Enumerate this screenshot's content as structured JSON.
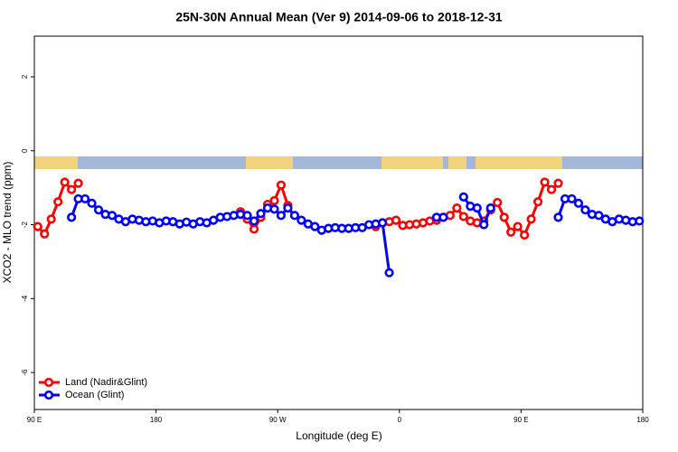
{
  "chart_data": {
    "type": "line",
    "title": "25N-30N Annual Mean (Ver 9)   2014-09-06 to 2018-12-31",
    "x_label": "Longitude (deg E)",
    "y_label": "XCO2 - MLO trend (ppm)",
    "xlim": [
      90,
      540
    ],
    "ylim": [
      -7,
      3.1
    ],
    "xticks": [
      {
        "value": 90,
        "label": "90 E"
      },
      {
        "value": 180,
        "label": "180"
      },
      {
        "value": 270,
        "label": "90 W"
      },
      {
        "value": 360,
        "label": "0"
      },
      {
        "value": 450,
        "label": "90 E"
      },
      {
        "value": 540,
        "label": "180"
      }
    ],
    "yticks": [
      -6,
      -4,
      -2,
      0,
      2
    ],
    "legend": "bottom-left",
    "x": [
      92.5,
      97.5,
      102.5,
      107.5,
      112.5,
      117.5,
      122.5,
      127.5,
      132.5,
      137.5,
      142.5,
      147.5,
      152.5,
      157.5,
      162.5,
      167.5,
      172.5,
      177.5,
      182.5,
      187.5,
      192.5,
      197.5,
      202.5,
      207.5,
      212.5,
      217.5,
      222.5,
      227.5,
      232.5,
      237.5,
      242.5,
      247.5,
      252.5,
      257.5,
      262.5,
      267.5,
      272.5,
      277.5,
      282.5,
      287.5,
      292.5,
      297.5,
      302.5,
      307.5,
      312.5,
      317.5,
      322.5,
      327.5,
      332.5,
      337.5,
      342.5,
      347.5,
      352.5,
      357.5,
      362.5,
      367.5,
      372.5,
      377.5,
      382.5,
      387.5,
      392.5,
      397.5,
      402.5,
      407.5,
      412.5,
      417.5,
      422.5,
      427.5,
      432.5,
      437.5,
      442.5,
      447.5,
      452.5,
      457.5,
      462.5,
      467.5,
      472.5,
      477.5,
      482.5,
      487.5,
      492.5,
      497.5,
      502.5,
      507.5,
      512.5,
      517.5,
      522.5,
      527.5,
      532.5,
      537.5
    ],
    "series": [
      {
        "name": "Land (Nadir&Glint)",
        "color": "#ff0000",
        "values": [
          -2.05,
          -2.25,
          -1.85,
          -1.38,
          -0.85,
          -1.05,
          -0.88,
          null,
          null,
          null,
          null,
          null,
          null,
          null,
          null,
          null,
          null,
          null,
          null,
          null,
          null,
          null,
          null,
          null,
          null,
          null,
          null,
          null,
          null,
          null,
          -1.65,
          -1.85,
          -2.12,
          -1.8,
          -1.45,
          -1.35,
          -0.93,
          -1.48,
          null,
          null,
          null,
          null,
          null,
          null,
          null,
          null,
          null,
          null,
          null,
          null,
          -2.05,
          -1.95,
          -1.92,
          -1.88,
          -2.02,
          -2.0,
          -1.98,
          -1.95,
          -1.9,
          -1.88,
          -1.8,
          -1.75,
          -1.55,
          -1.78,
          -1.9,
          -1.95,
          -1.9,
          -1.6,
          -1.4,
          -1.8,
          -2.2,
          -2.05,
          -2.28,
          -1.85,
          -1.38,
          -0.85,
          -1.05,
          -0.88,
          null,
          null,
          null,
          null,
          null,
          null,
          null,
          null,
          null,
          null,
          null,
          null
        ]
      },
      {
        "name": "Ocean (Glint)",
        "color": "#0000ff",
        "values": [
          null,
          null,
          null,
          null,
          null,
          -1.8,
          -1.3,
          -1.3,
          -1.42,
          -1.6,
          -1.72,
          -1.75,
          -1.85,
          -1.92,
          -1.85,
          -1.88,
          -1.92,
          -1.9,
          -1.95,
          -1.9,
          -1.92,
          -1.98,
          -1.93,
          -1.98,
          -1.92,
          -1.95,
          -1.88,
          -1.8,
          -1.78,
          -1.75,
          -1.72,
          -1.75,
          -1.9,
          -1.7,
          -1.55,
          -1.58,
          -1.75,
          -1.55,
          -1.75,
          -1.88,
          -1.98,
          -2.05,
          -2.15,
          -2.1,
          -2.08,
          -2.1,
          -2.1,
          -2.08,
          -2.08,
          -2.0,
          -1.98,
          -1.95,
          -3.3,
          null,
          null,
          null,
          null,
          null,
          null,
          -1.8,
          -1.8,
          null,
          null,
          -1.25,
          -1.5,
          -1.55,
          -2.0,
          -1.55,
          null,
          null,
          null,
          null,
          null,
          null,
          null,
          null,
          null,
          -1.8,
          -1.3,
          -1.3,
          -1.42,
          -1.6,
          -1.72,
          -1.75,
          -1.85,
          -1.92,
          -1.85,
          -1.88,
          -1.92,
          -1.9
        ]
      }
    ]
  }
}
